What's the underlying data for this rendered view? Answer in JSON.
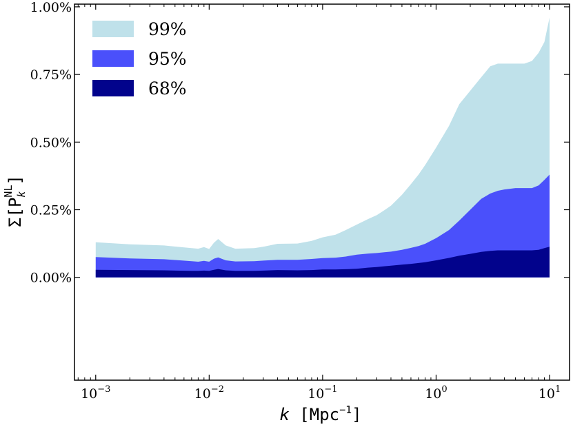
{
  "chart_data": {
    "type": "area",
    "xscale": "log",
    "xlim": [
      0.00065,
      15
    ],
    "ylim": [
      -0.0038,
      0.0101
    ],
    "xticks": [
      {
        "value": 0.001,
        "base": "10",
        "exp": "−3"
      },
      {
        "value": 0.01,
        "base": "10",
        "exp": "−2"
      },
      {
        "value": 0.1,
        "base": "10",
        "exp": "−1"
      },
      {
        "value": 1,
        "base": "10",
        "exp": "0"
      },
      {
        "value": 10,
        "base": "10",
        "exp": "1"
      }
    ],
    "yticks": [
      {
        "value": 0.0,
        "label": "0.00%"
      },
      {
        "value": 0.0025,
        "label": "0.25%"
      },
      {
        "value": 0.005,
        "label": "0.50%"
      },
      {
        "value": 0.0075,
        "label": "0.75%"
      },
      {
        "value": 0.01,
        "label": "1.00%"
      }
    ],
    "xlabel": {
      "var": "k",
      "unit_open": " [Mpc",
      "unit_exp": "−1",
      "unit_close": "]"
    },
    "ylabel": {
      "sym": "Σ[P",
      "sub": "k",
      "sup": "NL",
      "close": "]"
    },
    "legend_position": "top-left",
    "grid": false,
    "x": [
      0.001,
      0.002,
      0.004,
      0.007,
      0.008,
      0.009,
      0.01,
      0.011,
      0.012,
      0.014,
      0.017,
      0.025,
      0.03,
      0.04,
      0.06,
      0.08,
      0.1,
      0.13,
      0.16,
      0.2,
      0.25,
      0.3,
      0.35,
      0.4,
      0.5,
      0.6,
      0.7,
      0.8,
      1.0,
      1.3,
      1.6,
      2.0,
      2.5,
      3.0,
      3.5,
      4.0,
      5.0,
      6.0,
      7.0,
      8.0,
      9.0,
      10.0
    ],
    "series": [
      {
        "name": "99%",
        "color": "#bfe1ea",
        "values": [
          0.0013,
          0.00122,
          0.00118,
          0.00108,
          0.00106,
          0.00112,
          0.00105,
          0.00128,
          0.00142,
          0.00118,
          0.00106,
          0.00108,
          0.00113,
          0.00124,
          0.00125,
          0.00135,
          0.00148,
          0.00158,
          0.00175,
          0.00195,
          0.00215,
          0.0023,
          0.00248,
          0.00265,
          0.00305,
          0.00345,
          0.0038,
          0.00415,
          0.0048,
          0.0056,
          0.0064,
          0.0069,
          0.0074,
          0.0078,
          0.0079,
          0.0079,
          0.0079,
          0.0079,
          0.008,
          0.0083,
          0.0087,
          0.0096
        ]
      },
      {
        "name": "95%",
        "color": "#4a50fb",
        "values": [
          0.00075,
          0.0007,
          0.00067,
          0.0006,
          0.00058,
          0.00061,
          0.00058,
          0.00069,
          0.00074,
          0.00063,
          0.00059,
          0.0006,
          0.00062,
          0.00065,
          0.00065,
          0.00068,
          0.00071,
          0.00073,
          0.00077,
          0.00084,
          0.00088,
          0.0009,
          0.00093,
          0.00095,
          0.00102,
          0.00109,
          0.00116,
          0.00124,
          0.00145,
          0.00175,
          0.0021,
          0.0025,
          0.0029,
          0.0031,
          0.0032,
          0.00325,
          0.0033,
          0.0033,
          0.0033,
          0.0034,
          0.0036,
          0.0038
        ]
      },
      {
        "name": "68%",
        "color": "#02038c",
        "values": [
          0.00028,
          0.00027,
          0.00026,
          0.00024,
          0.00024,
          0.00025,
          0.00024,
          0.00028,
          0.00031,
          0.00026,
          0.00024,
          0.00024,
          0.00025,
          0.00027,
          0.00026,
          0.00027,
          0.00029,
          0.00029,
          0.0003,
          0.00032,
          0.00036,
          0.00038,
          0.00041,
          0.00043,
          0.00047,
          0.0005,
          0.00053,
          0.00056,
          0.00063,
          0.00072,
          0.0008,
          0.00087,
          0.00094,
          0.00098,
          0.001,
          0.001,
          0.001,
          0.001,
          0.001,
          0.00102,
          0.00108,
          0.00113
        ]
      }
    ]
  }
}
